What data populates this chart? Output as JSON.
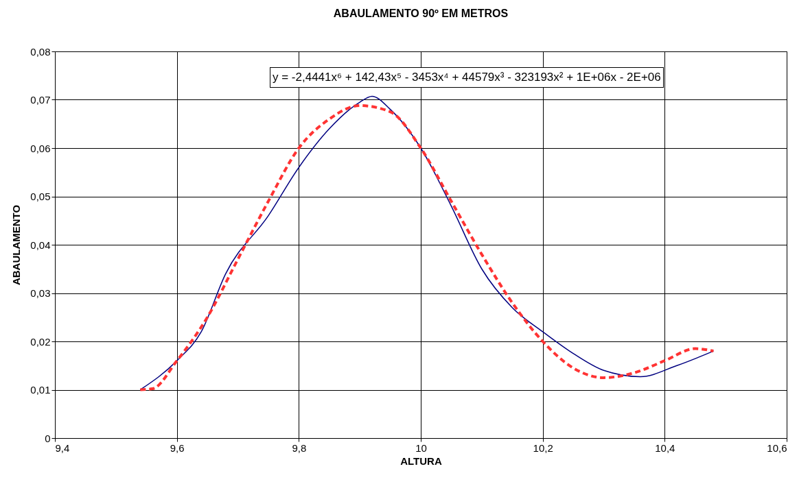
{
  "chart_data": {
    "type": "line",
    "title": "ABAULAMENTO 90º  EM METROS",
    "xlabel": "ALTURA",
    "ylabel": "ABAULAMENTO",
    "annotations": [
      "y = -2,4441x⁶ + 142,43x⁵ - 3453x⁴ + 44579x³ - 323193x² + 1E+06x - 2E+06"
    ],
    "xlim": [
      9.4,
      10.6
    ],
    "xticks": [
      {
        "value": 9.4,
        "label": "9,4"
      },
      {
        "value": 9.6,
        "label": "9,6"
      },
      {
        "value": 9.8,
        "label": "9,8"
      },
      10,
      {
        "value": 10.2,
        "label": "10,2"
      },
      {
        "value": 10.4,
        "label": "10,4"
      },
      {
        "value": 10.6,
        "label": "10,6"
      }
    ],
    "ylim": [
      0,
      0.08
    ],
    "yticks": [
      0,
      {
        "value": 0.01,
        "label": "0,01"
      },
      {
        "value": 0.02,
        "label": "0,02"
      },
      {
        "value": 0.03,
        "label": "0,03"
      },
      {
        "value": 0.04,
        "label": "0,04"
      },
      {
        "value": 0.05,
        "label": "0,05"
      },
      {
        "value": 0.06,
        "label": "0,06"
      },
      {
        "value": 0.07,
        "label": "0,07"
      },
      {
        "value": 0.08,
        "label": "0,08"
      }
    ],
    "grid": true,
    "marker": "none",
    "series": [
      {
        "color": "#000080",
        "line_style": "solid",
        "x": [
          9.54,
          9.6,
          9.64,
          9.68,
          9.75,
          9.8,
          9.85,
          9.9,
          9.92,
          9.95,
          10.0,
          10.05,
          10.1,
          10.15,
          10.2,
          10.25,
          10.3,
          10.36,
          10.42,
          10.48
        ],
        "values": [
          0.01,
          0.016,
          0.022,
          0.034,
          0.046,
          0.056,
          0.064,
          0.0695,
          0.0707,
          0.068,
          0.06,
          0.048,
          0.035,
          0.027,
          0.022,
          0.0175,
          0.014,
          0.0127,
          0.015,
          0.018
        ]
      },
      {
        "color": "#ff3333",
        "line_style": "dashed",
        "x": [
          9.54,
          9.56,
          9.6,
          9.65,
          9.7,
          9.75,
          9.8,
          9.85,
          9.9,
          9.95,
          10.0,
          10.05,
          10.1,
          10.15,
          10.2,
          10.25,
          10.3,
          10.35,
          10.4,
          10.45,
          10.48
        ],
        "values": [
          0.01,
          0.0102,
          0.016,
          0.025,
          0.037,
          0.049,
          0.06,
          0.066,
          0.0688,
          0.0675,
          0.06,
          0.049,
          0.038,
          0.028,
          0.02,
          0.0145,
          0.0125,
          0.0135,
          0.016,
          0.0185,
          0.018
        ]
      }
    ]
  }
}
